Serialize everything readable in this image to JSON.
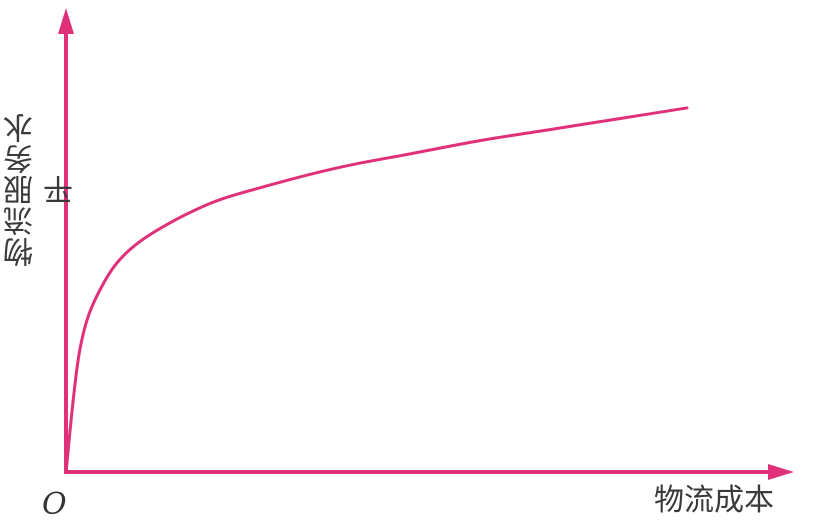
{
  "chart_data": {
    "type": "line",
    "title": "",
    "xlabel": "物流成本",
    "ylabel": "物流服务水平",
    "origin_label": "O",
    "x_ticks": [],
    "y_ticks": [],
    "grid": false,
    "legend": "none",
    "line_color": "#e0307a",
    "axis_color": "#e0307a",
    "xlim": [
      0,
      1
    ],
    "ylim": [
      0,
      1
    ],
    "series": [
      {
        "x": [
          0,
          0.02,
          0.05,
          0.1,
          0.2,
          0.3,
          0.4,
          0.5,
          0.6,
          0.7,
          0.8,
          0.9
        ],
        "y": [
          0,
          0.28,
          0.42,
          0.52,
          0.61,
          0.66,
          0.7,
          0.73,
          0.76,
          0.785,
          0.81,
          0.835
        ]
      }
    ]
  }
}
